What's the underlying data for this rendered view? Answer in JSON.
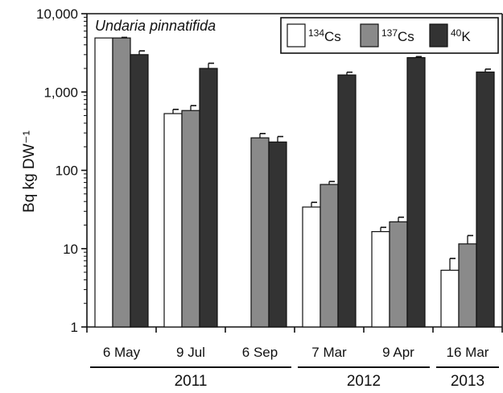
{
  "chart_data": {
    "type": "bar",
    "title": "Undaria pinnatifida",
    "ylabel": "Bq kg DW⁻¹",
    "yscale": "log",
    "ylim": [
      1,
      10000
    ],
    "yticks": [
      {
        "value": 1,
        "label": "1"
      },
      {
        "value": 10,
        "label": "10"
      },
      {
        "value": 100,
        "label": "100"
      },
      {
        "value": 1000,
        "label": "1,000"
      },
      {
        "value": 10000,
        "label": "10,000"
      }
    ],
    "categories": [
      "6 May",
      "9 Jul",
      "6 Sep",
      "7 Mar",
      "9 Apr",
      "16 Mar"
    ],
    "years": [
      {
        "label": "2011",
        "from": 0,
        "to": 2
      },
      {
        "label": "2012",
        "from": 3,
        "to": 4
      },
      {
        "label": "2013",
        "from": 5,
        "to": 5
      }
    ],
    "legend_position": "top-right",
    "series": [
      {
        "name": "Cs",
        "mass": "134",
        "color": "#ffffff",
        "values": [
          4900,
          530,
          null,
          34,
          16.5,
          5.3
        ],
        "errors": [
          0,
          70,
          null,
          5,
          2.2,
          2.2
        ]
      },
      {
        "name": "Cs",
        "mass": "137",
        "color": "#8a8a8a",
        "values": [
          4900,
          580,
          260,
          66,
          22,
          11.5
        ],
        "errors": [
          80,
          90,
          35,
          6,
          3.2,
          3.2
        ]
      },
      {
        "name": "K",
        "mass": "40",
        "color": "#333333",
        "values": [
          3000,
          2000,
          230,
          1650,
          2750,
          1800
        ],
        "errors": [
          350,
          330,
          40,
          140,
          80,
          160
        ]
      }
    ]
  }
}
